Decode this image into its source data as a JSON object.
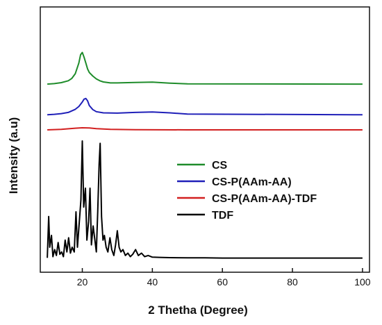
{
  "chart_data": {
    "type": "line",
    "title": "",
    "xlabel": "2 Thetha (Degree)",
    "ylabel": "Intensity (a.u)",
    "xlim": [
      8,
      102
    ],
    "ylim": [
      0,
      100
    ],
    "x_ticks": [
      20,
      40,
      60,
      80,
      100
    ],
    "x_tick_labels": [
      "20",
      "40",
      "60",
      "80",
      "100"
    ],
    "y_ticks_labeled": false,
    "grid": false,
    "legend_position": "middle-right",
    "series": [
      {
        "name": "CS",
        "color": "#1e8c2a",
        "x": [
          10,
          12,
          14,
          16,
          17,
          18,
          19,
          19.5,
          20,
          20.5,
          21,
          21.5,
          22,
          23,
          24,
          25,
          26,
          28,
          30,
          35,
          40,
          45,
          50,
          100
        ],
        "y": [
          74.1,
          74.3,
          74.7,
          75.5,
          76.5,
          78.5,
          83,
          86.5,
          87.5,
          85.5,
          83,
          80.5,
          79,
          77.5,
          76.3,
          75.5,
          75,
          74.6,
          74.6,
          74.8,
          74.9,
          74.5,
          74.2,
          74.1
        ]
      },
      {
        "name": "CS-P(AAm-AA)",
        "color": "#1f1fb8",
        "x": [
          10,
          12,
          14,
          16,
          18,
          19,
          20,
          20.5,
          21,
          21.5,
          22,
          23,
          24,
          26,
          30,
          35,
          40,
          45,
          50,
          100
        ],
        "y": [
          61.1,
          61.3,
          61.6,
          62.1,
          63.4,
          64.6,
          66.5,
          67.7,
          68,
          67,
          65,
          63.3,
          62.4,
          61.9,
          61.8,
          62.1,
          62.3,
          61.9,
          61.4,
          61.1
        ]
      },
      {
        "name": "CS-P(AAm-AA)-TDF",
        "color": "#d21f1f",
        "x": [
          10,
          14,
          18,
          20,
          22,
          24,
          28,
          35,
          50,
          100
        ],
        "y": [
          54.7,
          54.9,
          55.4,
          55.6,
          55.5,
          55.2,
          54.9,
          54.8,
          54.7,
          54.7
        ]
      },
      {
        "name": "TDF",
        "color": "#000000",
        "x": [
          10,
          10.4,
          10.7,
          11.2,
          11.6,
          12.1,
          12.6,
          13.1,
          13.6,
          14.1,
          14.6,
          15.1,
          15.6,
          16.1,
          16.6,
          17.1,
          17.7,
          18.2,
          18.6,
          19.1,
          19.6,
          20,
          20.4,
          20.9,
          21.3,
          21.8,
          22.2,
          22.6,
          23.1,
          23.5,
          24,
          24.4,
          24.8,
          25.1,
          25.5,
          25.9,
          26.3,
          26.8,
          27.3,
          27.9,
          28.4,
          29,
          29.5,
          30,
          30.5,
          31,
          31.6,
          32.3,
          33,
          33.7,
          34.4,
          35.2,
          36,
          36.9,
          37.8,
          38.8,
          40,
          42,
          45,
          50,
          55,
          60,
          70,
          80,
          100
        ],
        "y": [
          0.5,
          18,
          5,
          10,
          1,
          4,
          1.5,
          7,
          2,
          3,
          1,
          8,
          3,
          9,
          2.5,
          5,
          3,
          20,
          5,
          15,
          25,
          50,
          22,
          30,
          8,
          16,
          30,
          6,
          14,
          9,
          3,
          20,
          40,
          49,
          18,
          8,
          10,
          5,
          3,
          9,
          4,
          1.5,
          6,
          12,
          5,
          3,
          4,
          1.5,
          2.5,
          1,
          2,
          4,
          1.5,
          2.5,
          1,
          1.5,
          0.8,
          0.7,
          0.6,
          0.5,
          0.5,
          0.4,
          0.4,
          0.4,
          0.4
        ]
      }
    ]
  }
}
